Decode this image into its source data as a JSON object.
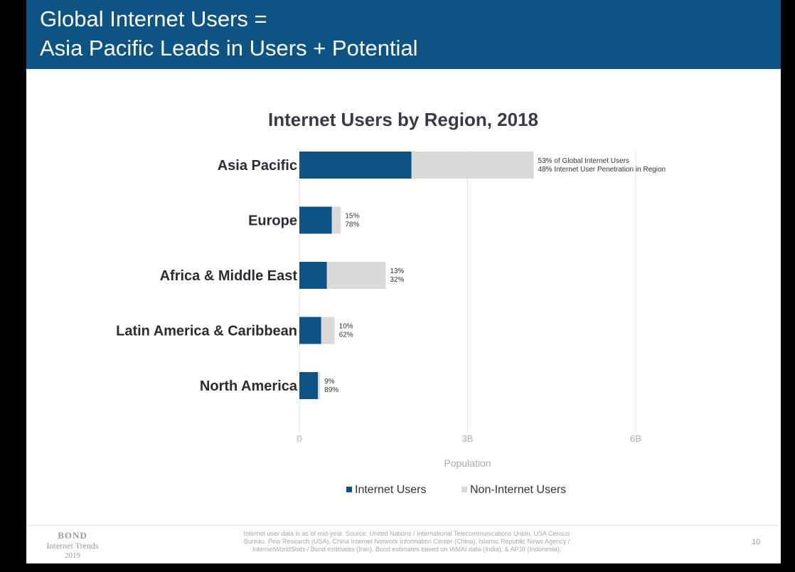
{
  "header": {
    "line1": "Global Internet Users =",
    "line2": "Asia Pacific Leads in Users + Potential"
  },
  "chart_data": {
    "type": "bar",
    "orientation": "horizontal",
    "stacked": true,
    "title": "Internet Users by Region, 2018",
    "xlabel": "Population",
    "xlim": [
      0,
      6
    ],
    "x_ticks": [
      "0",
      "3B",
      "6B"
    ],
    "grid": true,
    "categories": [
      "Asia Pacific",
      "Europe",
      "Africa & Middle East",
      "Latin America & Caribbean",
      "North America"
    ],
    "series": [
      {
        "name": "Internet Users",
        "color": "#0d5383",
        "values": [
          2.0,
          0.58,
          0.49,
          0.39,
          0.33
        ]
      },
      {
        "name": "Non-Internet Users",
        "color": "#d9d9d9",
        "values": [
          2.18,
          0.16,
          1.05,
          0.24,
          0.04
        ]
      }
    ],
    "annotations": [
      {
        "line1": "53% of Global Internet Users",
        "line2": "48% Internet User Penetration in Region"
      },
      {
        "line1": "15%",
        "line2": "78%"
      },
      {
        "line1": "13%",
        "line2": "32%"
      },
      {
        "line1": "10%",
        "line2": "62%"
      },
      {
        "line1": "9%",
        "line2": "89%"
      }
    ],
    "legend_position": "bottom"
  },
  "footer": {
    "brand_line1": "BOND",
    "brand_line2": "Internet Trends",
    "brand_line3": "2019",
    "source_line1": "Internet user data is as of mid-year.  Source: United Nations / International Telecommunications Union, USA Census",
    "source_line2": "Bureau. Pew Research (USA), China Internet Network Information Center (China), Islamic Republic News Agency /",
    "source_line3": "InternetWorldStats / Bond estimates (Iran), Bond estimates based on IAMAI data (India), & APJII (Indonesia).",
    "page_number": "10"
  }
}
